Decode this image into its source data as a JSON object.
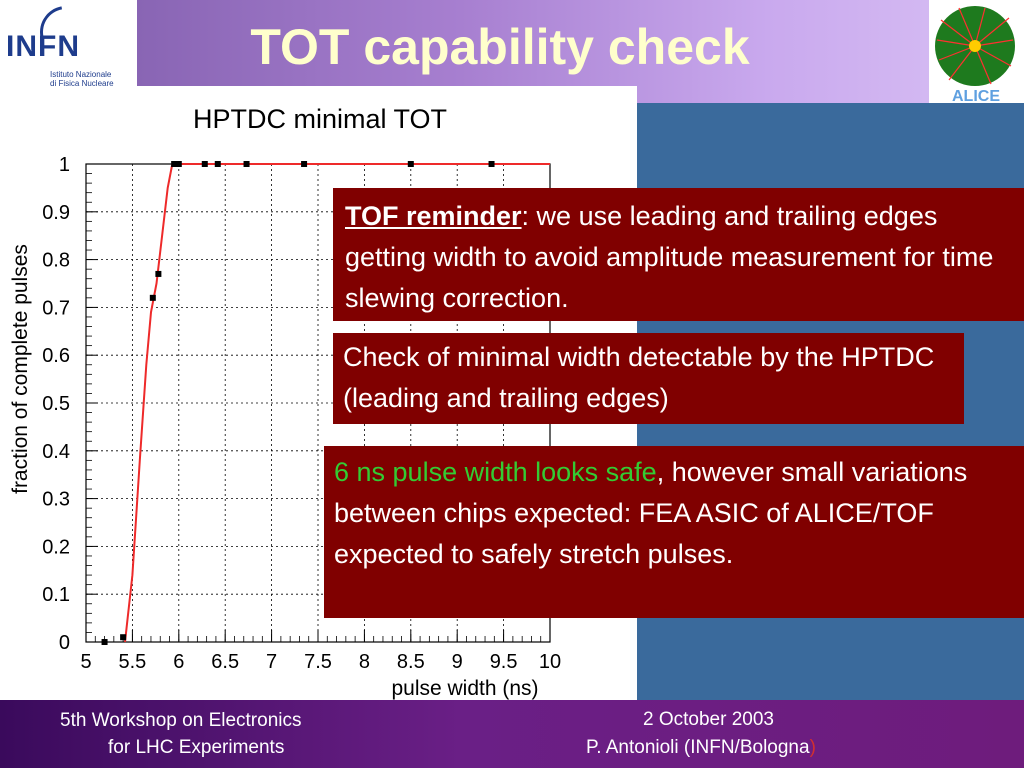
{
  "slide": {
    "title": "TOT capability check",
    "logo": {
      "name": "INFN",
      "subtitle_lines": [
        "Istituto Nazionale",
        "di Fisica Nucleare"
      ]
    },
    "alice_logo": "ALICE",
    "colors": {
      "title": "#ffffcc",
      "box_bg": "#800000",
      "highlight_green": "#33cc33",
      "background": "#3a6a9c",
      "curve": "#ee2a2a"
    }
  },
  "notes": {
    "box1": {
      "keyword": "TOF reminder",
      "text": ": we use leading and trailing edges getting width to avoid amplitude measurement for time slewing correction."
    },
    "box2": {
      "text": "Check of minimal width detectable by the HPTDC (leading and trailing edges)"
    },
    "box3": {
      "highlight": "6 ns pulse width looks safe",
      "text": ", however small variations between chips expected: FEA ASIC of ALICE/TOF expected to safely stretch pulses."
    }
  },
  "footer": {
    "left_line1": "5th Workshop on Electronics",
    "left_line2": "for LHC Experiments",
    "right_line1": "2 October 2003",
    "right_line2_main": "P. Antonioli (INFN/Bologna",
    "right_line2_end": ")"
  },
  "chart_data": {
    "type": "scatter",
    "title": "HPTDC minimal TOT",
    "xlabel": "pulse width (ns)",
    "ylabel": "fraction of complete pulses",
    "xlim": [
      5,
      10
    ],
    "ylim": [
      0,
      1
    ],
    "x_ticks": [
      "5",
      "5.5",
      "6",
      "6.5",
      "7",
      "7.5",
      "8",
      "8.5",
      "9",
      "9.5",
      "10"
    ],
    "y_ticks": [
      "0",
      "0.1",
      "0.2",
      "0.3",
      "0.4",
      "0.5",
      "0.6",
      "0.7",
      "0.8",
      "0.9",
      "1"
    ],
    "grid": true,
    "points": [
      {
        "x": 5.2,
        "y": 0.0
      },
      {
        "x": 5.4,
        "y": 0.01
      },
      {
        "x": 5.72,
        "y": 0.72
      },
      {
        "x": 5.78,
        "y": 0.77
      },
      {
        "x": 5.95,
        "y": 1.0
      },
      {
        "x": 6.0,
        "y": 1.0
      },
      {
        "x": 6.28,
        "y": 1.0
      },
      {
        "x": 6.42,
        "y": 1.0
      },
      {
        "x": 6.73,
        "y": 1.0
      },
      {
        "x": 7.35,
        "y": 1.0
      },
      {
        "x": 8.5,
        "y": 1.0
      },
      {
        "x": 9.37,
        "y": 1.0
      }
    ],
    "fit_curve": [
      {
        "x": 5.42,
        "y": 0.0
      },
      {
        "x": 5.5,
        "y": 0.14
      },
      {
        "x": 5.58,
        "y": 0.38
      },
      {
        "x": 5.65,
        "y": 0.58
      },
      {
        "x": 5.7,
        "y": 0.69
      },
      {
        "x": 5.76,
        "y": 0.75
      },
      {
        "x": 5.82,
        "y": 0.85
      },
      {
        "x": 5.88,
        "y": 0.95
      },
      {
        "x": 5.93,
        "y": 1.0
      },
      {
        "x": 10.0,
        "y": 1.0
      }
    ]
  }
}
